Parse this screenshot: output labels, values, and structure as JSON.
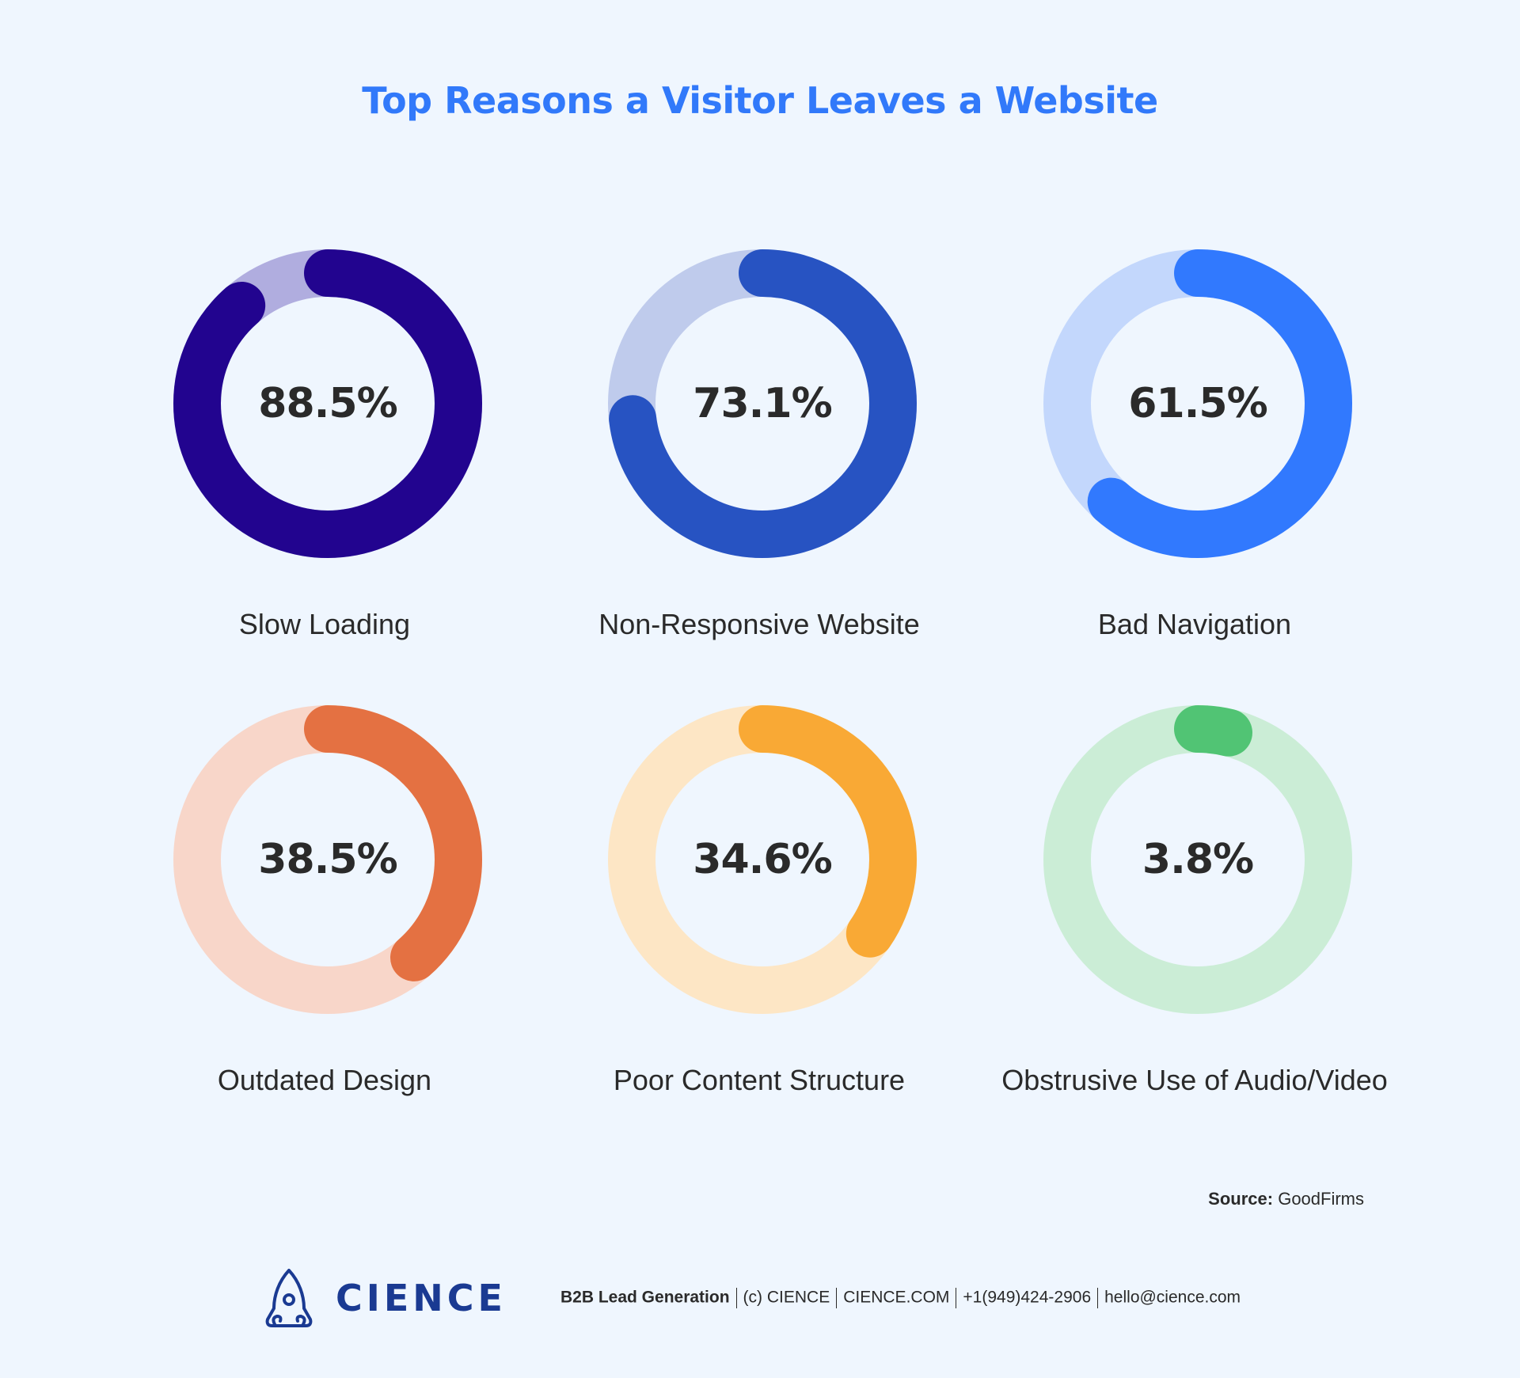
{
  "title": "Top Reasons a Visitor Leaves a Website",
  "items": [
    {
      "label": "Slow Loading",
      "value_text": "88.5%",
      "value": 88.5,
      "color": "#22048f",
      "track": "#b0addf"
    },
    {
      "label": "Non-Responsive Website",
      "value_text": "73.1%",
      "value": 73.1,
      "color": "#2753c2",
      "track": "#bfcbec"
    },
    {
      "label": "Bad Navigation",
      "value_text": "61.5%",
      "value": 61.5,
      "color": "#3179fe",
      "track": "#c3d7fc"
    },
    {
      "label": "Outdated Design",
      "value_text": "38.5%",
      "value": 38.5,
      "color": "#e47142",
      "track": "#f8d6c9"
    },
    {
      "label": "Poor Content Structure",
      "value_text": "34.6%",
      "value": 34.6,
      "color": "#f9a935",
      "track": "#fde6c5"
    },
    {
      "label": "Obstrusive Use of Audio/Video",
      "value_text": "3.8%",
      "value": 3.8,
      "color": "#51c474",
      "track": "#cbedd6"
    }
  ],
  "source": {
    "prefix": "Source:",
    "name": "GoodFirms"
  },
  "footer": {
    "brand": "CIENCE",
    "tagline": "B2B Lead Generation",
    "copyright": "(c) CIENCE",
    "website": "CIENCE.COM",
    "phone": "+1(949)424-2906",
    "email": "hello@cience.com"
  },
  "chart_data": {
    "type": "pie",
    "subtype": "donut-progress",
    "title": "Top Reasons a Visitor Leaves a Website",
    "categories": [
      "Slow Loading",
      "Non-Responsive Website",
      "Bad Navigation",
      "Outdated Design",
      "Poor Content Structure",
      "Obstrusive Use of Audio/Video"
    ],
    "values": [
      88.5,
      73.1,
      61.5,
      38.5,
      34.6,
      3.8
    ],
    "unit": "%",
    "max": 100,
    "source": "GoodFirms"
  }
}
